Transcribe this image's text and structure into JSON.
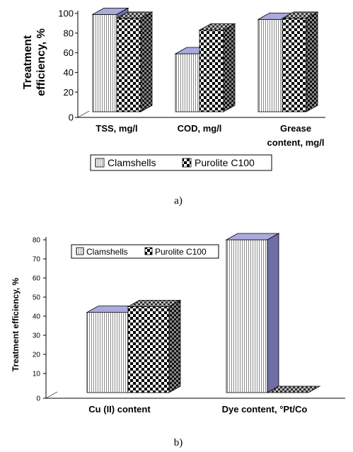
{
  "chart_data": [
    {
      "type": "bar",
      "panel_label": "a)",
      "ylabel_line1": "Treatment",
      "ylabel_line2": "efficiency, %",
      "ylim": [
        0,
        100
      ],
      "yticks": [
        "0",
        "20",
        "40",
        "60",
        "80",
        "100"
      ],
      "categories": [
        {
          "line1": "TSS, mg/l",
          "line2": ""
        },
        {
          "line1": "COD, mg/l",
          "line2": ""
        },
        {
          "line1": "Grease",
          "line2": "content, mg/l"
        }
      ],
      "series": [
        {
          "name": "Clamshells",
          "values": [
            99,
            59,
            94
          ]
        },
        {
          "name": "Purolite C100",
          "values": [
            95,
            83,
            95
          ]
        }
      ],
      "legend_position": "bottom"
    },
    {
      "type": "bar",
      "panel_label": "b)",
      "ylabel": "Treatment efficiency, %",
      "ylim": [
        0,
        80
      ],
      "yticks": [
        "0",
        "10",
        "20",
        "30",
        "40",
        "50",
        "60",
        "70",
        "80"
      ],
      "categories": [
        {
          "line1": "Cu (II) content",
          "line2": ""
        },
        {
          "line1": "Dye content, °Pt/Co",
          "line2": ""
        }
      ],
      "series": [
        {
          "name": "Clamshells",
          "values": [
            42,
            80
          ]
        },
        {
          "name": "Purolite C100",
          "values": [
            45,
            0
          ]
        }
      ],
      "legend_position": "top-left"
    }
  ],
  "colors": {
    "clamshells_face": "#ffffff",
    "clamshells_stripe": "#8a8a8a",
    "top_face": "#aaaadd",
    "side_face": "#6e6ea6",
    "checker_dark": "#000000",
    "checker_light": "#ffffff"
  }
}
